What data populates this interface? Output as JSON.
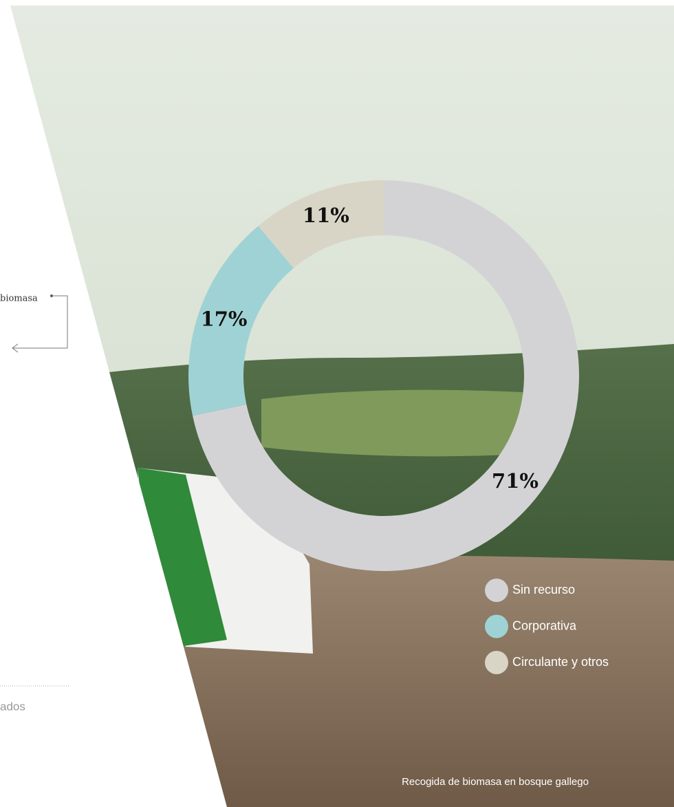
{
  "chart_data": {
    "type": "donut",
    "categories": [
      "Sin recurso",
      "Corporativa",
      "Circulante y otros"
    ],
    "values": [
      71,
      17,
      11
    ],
    "value_labels": [
      "71%",
      "17%",
      "11%"
    ],
    "colors": [
      "#d3d3d5",
      "#9fd2d5",
      "#d8d5c6"
    ]
  },
  "page": {
    "side_label": "biomasa",
    "side_text": "ados",
    "caption": "Recogida de biomasa en bosque gallego"
  }
}
